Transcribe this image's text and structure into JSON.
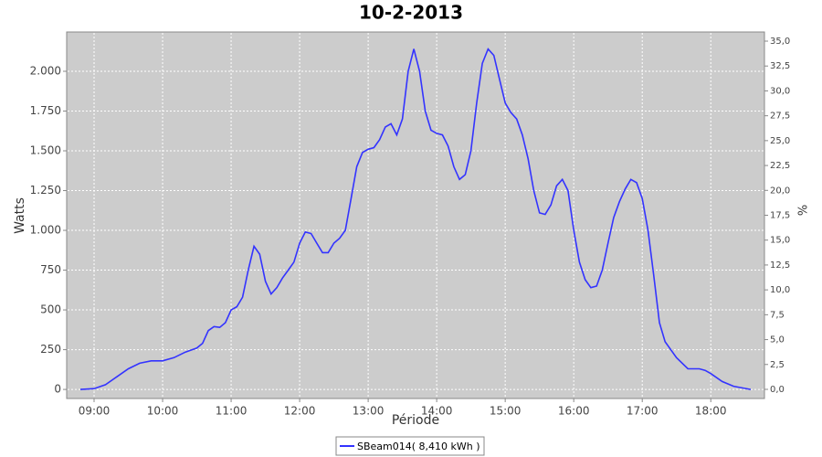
{
  "chart_data": {
    "type": "line",
    "title": "10-2-2013",
    "x_label": "Période",
    "y_label": "Watts",
    "y2_label": "%",
    "x": [
      "08:48",
      "09:00",
      "09:10",
      "09:20",
      "09:30",
      "09:40",
      "09:50",
      "10:00",
      "10:10",
      "10:20",
      "10:30",
      "10:35",
      "10:40",
      "10:45",
      "10:50",
      "10:55",
      "11:00",
      "11:05",
      "11:10",
      "11:15",
      "11:20",
      "11:25",
      "11:30",
      "11:35",
      "11:40",
      "11:45",
      "11:50",
      "11:55",
      "12:00",
      "12:05",
      "12:10",
      "12:15",
      "12:20",
      "12:25",
      "12:30",
      "12:35",
      "12:40",
      "12:45",
      "12:50",
      "12:55",
      "13:00",
      "13:05",
      "13:10",
      "13:15",
      "13:20",
      "13:25",
      "13:30",
      "13:35",
      "13:40",
      "13:45",
      "13:50",
      "13:55",
      "14:00",
      "14:05",
      "14:10",
      "14:15",
      "14:20",
      "14:25",
      "14:30",
      "14:35",
      "14:40",
      "14:45",
      "14:50",
      "14:55",
      "15:00",
      "15:05",
      "15:10",
      "15:15",
      "15:20",
      "15:25",
      "15:30",
      "15:35",
      "15:40",
      "15:45",
      "15:50",
      "15:55",
      "16:00",
      "16:05",
      "16:10",
      "16:15",
      "16:20",
      "16:25",
      "16:30",
      "16:35",
      "16:40",
      "16:45",
      "16:50",
      "16:55",
      "17:00",
      "17:05",
      "17:10",
      "17:15",
      "17:20",
      "17:30",
      "17:40",
      "17:50",
      "17:55",
      "18:00",
      "18:10",
      "18:20",
      "18:35"
    ],
    "series": [
      {
        "name": "SBeam014( 8,410 kWh )",
        "color": "#3333ff",
        "values": [
          0,
          5,
          30,
          80,
          130,
          165,
          180,
          180,
          200,
          235,
          260,
          290,
          370,
          395,
          390,
          420,
          500,
          520,
          580,
          750,
          900,
          850,
          680,
          600,
          640,
          700,
          750,
          800,
          920,
          990,
          980,
          920,
          860,
          860,
          920,
          950,
          1000,
          1200,
          1400,
          1490,
          1510,
          1520,
          1570,
          1650,
          1670,
          1600,
          1700,
          2000,
          2140,
          2000,
          1750,
          1630,
          1610,
          1600,
          1530,
          1400,
          1320,
          1350,
          1500,
          1800,
          2050,
          2140,
          2100,
          1950,
          1800,
          1740,
          1700,
          1600,
          1450,
          1250,
          1110,
          1100,
          1160,
          1280,
          1320,
          1250,
          1000,
          800,
          690,
          640,
          650,
          750,
          920,
          1080,
          1180,
          1260,
          1320,
          1300,
          1200,
          1000,
          720,
          420,
          300,
          200,
          130,
          130,
          120,
          100,
          50,
          20,
          0
        ]
      }
    ],
    "xlim": [
      "08:36",
      "18:47"
    ],
    "xticks": [
      "09:00",
      "10:00",
      "11:00",
      "12:00",
      "13:00",
      "14:00",
      "15:00",
      "16:00",
      "17:00",
      "18:00"
    ],
    "ylim": [
      -57,
      2247
    ],
    "yticks": [
      0,
      250,
      500,
      750,
      {
        "value": 1000,
        "label": "1.000"
      },
      {
        "value": 1250,
        "label": "1.250"
      },
      {
        "value": 1500,
        "label": "1.500"
      },
      {
        "value": 1750,
        "label": "1.750"
      },
      {
        "value": 2000,
        "label": "2.000"
      }
    ],
    "y2lim": [
      -0.92,
      35.92
    ],
    "y2ticks": [
      {
        "value": 0,
        "label": "0,0"
      },
      {
        "value": 2.5,
        "label": "2,5"
      },
      {
        "value": 5,
        "label": "5,0"
      },
      {
        "value": 7.5,
        "label": "7,5"
      },
      {
        "value": 10,
        "label": "10,0"
      },
      {
        "value": 12.5,
        "label": "12,5"
      },
      {
        "value": 15,
        "label": "15,0"
      },
      {
        "value": 17.5,
        "label": "17,5"
      },
      {
        "value": 20,
        "label": "20,0"
      },
      {
        "value": 22.5,
        "label": "22,5"
      },
      {
        "value": 25,
        "label": "25,0"
      },
      {
        "value": 27.5,
        "label": "27,5"
      },
      {
        "value": 30,
        "label": "30,0"
      },
      {
        "value": 32.5,
        "label": "32,5"
      },
      {
        "value": 35,
        "label": "35,0"
      }
    ],
    "grid": true
  }
}
